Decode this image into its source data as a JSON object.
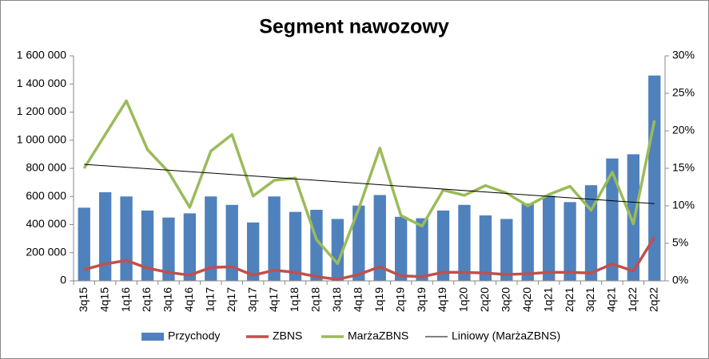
{
  "chart_data": {
    "type": "bar_line_combo",
    "title": "Segment nawozowy",
    "categories": [
      "3q15",
      "4q15",
      "1q16",
      "2q16",
      "3q16",
      "4q16",
      "1q17",
      "2q17",
      "3q17",
      "4q17",
      "1q18",
      "2q18",
      "3q18",
      "4q18",
      "1q19",
      "2q19",
      "3q19",
      "4q19",
      "1q20",
      "2q20",
      "3q20",
      "4q20",
      "1q21",
      "2q21",
      "3q21",
      "4q21",
      "1q22",
      "2q22"
    ],
    "series": [
      {
        "name": "Przychody",
        "type": "bar",
        "color": "#4f81bd",
        "values": [
          520000,
          630000,
          600000,
          500000,
          450000,
          480000,
          600000,
          540000,
          415000,
          600000,
          490000,
          505000,
          440000,
          535000,
          610000,
          455000,
          445000,
          500000,
          540000,
          465000,
          440000,
          550000,
          605000,
          560000,
          680000,
          870000,
          900000,
          1460000
        ]
      },
      {
        "name": "ZBNS",
        "type": "line",
        "color": "#c0504d",
        "values": [
          80000,
          120000,
          145000,
          90000,
          60000,
          40000,
          95000,
          100000,
          40000,
          75000,
          60000,
          30000,
          10000,
          45000,
          100000,
          35000,
          30000,
          60000,
          60000,
          55000,
          45000,
          50000,
          60000,
          60000,
          55000,
          120000,
          70000,
          310000
        ]
      },
      {
        "name": "MarżaZBNS",
        "type": "line",
        "axis": "y2",
        "color": "#9bbb59",
        "values": [
          15,
          19.5,
          24,
          17.5,
          14.5,
          9.8,
          17.3,
          19.5,
          11.3,
          13.4,
          13.7,
          5.5,
          2.3,
          9.6,
          17.7,
          8.7,
          7.3,
          12.1,
          11.4,
          12.7,
          11.7,
          10,
          11.5,
          12.6,
          9.4,
          14.5,
          7.6,
          21.4
        ]
      }
    ],
    "trendline": {
      "name": "Liniowy (MarżaZBNS)",
      "color": "#000000"
    },
    "ylim": [
      0,
      1600000
    ],
    "yticks": [
      0,
      {
        "value": 200000,
        "label": "200 000"
      },
      {
        "value": 400000,
        "label": "400 000"
      },
      {
        "value": 600000,
        "label": "600 000"
      },
      {
        "value": 800000,
        "label": "800 000"
      },
      {
        "value": 1000000,
        "label": "1 000 000"
      },
      {
        "value": 1200000,
        "label": "1 200 000"
      },
      {
        "value": 1400000,
        "label": "1 400 000"
      },
      {
        "value": 1600000,
        "label": "1 600 000"
      }
    ],
    "y2lim": [
      0,
      30
    ],
    "y2ticks": [
      {
        "value": 0,
        "label": "0%"
      },
      {
        "value": 5,
        "label": "5%"
      },
      {
        "value": 10,
        "label": "10%"
      },
      {
        "value": 15,
        "label": "15%"
      },
      {
        "value": 20,
        "label": "20%"
      },
      {
        "value": 25,
        "label": "25%"
      },
      {
        "value": 30,
        "label": "30%"
      }
    ],
    "legend": "bottom",
    "grid": false
  }
}
